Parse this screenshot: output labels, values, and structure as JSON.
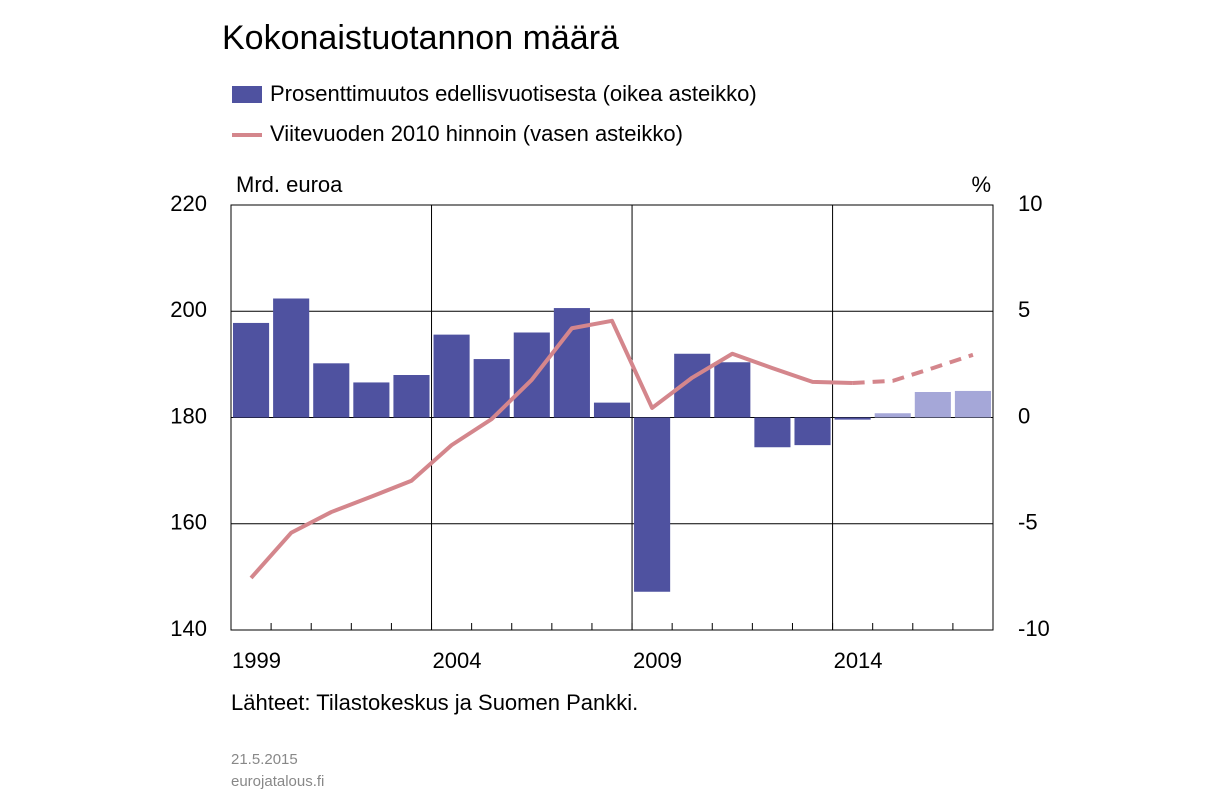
{
  "chart_data": {
    "type": "bar_line",
    "title": "Kokonaistuotannon määrä",
    "y_label": "Mrd. euroa",
    "y2_label": "%",
    "source": "Lähteet: Tilastokeskus ja Suomen Pankki.",
    "date": "21.5.2015",
    "site": "eurojatalous.fi",
    "categories": [
      "1999",
      null,
      null,
      null,
      null,
      "2004",
      null,
      null,
      null,
      null,
      "2009",
      null,
      null,
      null,
      null,
      "2014",
      null,
      null,
      null
    ],
    "ylim": [
      140,
      220
    ],
    "yticks": [
      140,
      160,
      180,
      200,
      220
    ],
    "y2lim": [
      -10,
      10
    ],
    "y2ticks": [
      -10,
      -5,
      0,
      5,
      10
    ],
    "grid": true,
    "series": [
      {
        "name": "Prosenttimuutos edellisvuotisesta (oikea asteikko)",
        "type": "bar",
        "axis": "y2",
        "color": "#4f52a0",
        "values": [
          4.45,
          5.6,
          2.55,
          1.65,
          2.0,
          3.9,
          2.75,
          4.0,
          5.15,
          0.7,
          -8.2,
          3.0,
          2.6,
          -1.4,
          -1.3,
          -0.1,
          0.2,
          1.2,
          1.25
        ],
        "colors": [
          "#4f52a0",
          "#4f52a0",
          "#4f52a0",
          "#4f52a0",
          "#4f52a0",
          "#4f52a0",
          "#4f52a0",
          "#4f52a0",
          "#4f52a0",
          "#4f52a0",
          "#4f52a0",
          "#4f52a0",
          "#4f52a0",
          "#4f52a0",
          "#4f52a0",
          "#4f52a0",
          "#a5a7d8",
          "#a5a7d8",
          "#a5a7d8"
        ]
      },
      {
        "name": "Viitevuoden 2010 hinnoin (vasen asteikko)",
        "type": "line",
        "axis": "y",
        "color": "#d4868c",
        "values": [
          149.8,
          158.3,
          162.2,
          165.1,
          168.1,
          174.8,
          179.7,
          187.1,
          196.8,
          198.2,
          181.8,
          187.5,
          192.0,
          189.3,
          186.7,
          186.5,
          186.9,
          189.3,
          191.8
        ],
        "styles": [
          "solid",
          "solid",
          "solid",
          "solid",
          "solid",
          "solid",
          "solid",
          "solid",
          "solid",
          "solid",
          "solid",
          "solid",
          "solid",
          "solid",
          "solid",
          "solid",
          "dashed",
          "dashed",
          "dashed"
        ]
      }
    ]
  }
}
